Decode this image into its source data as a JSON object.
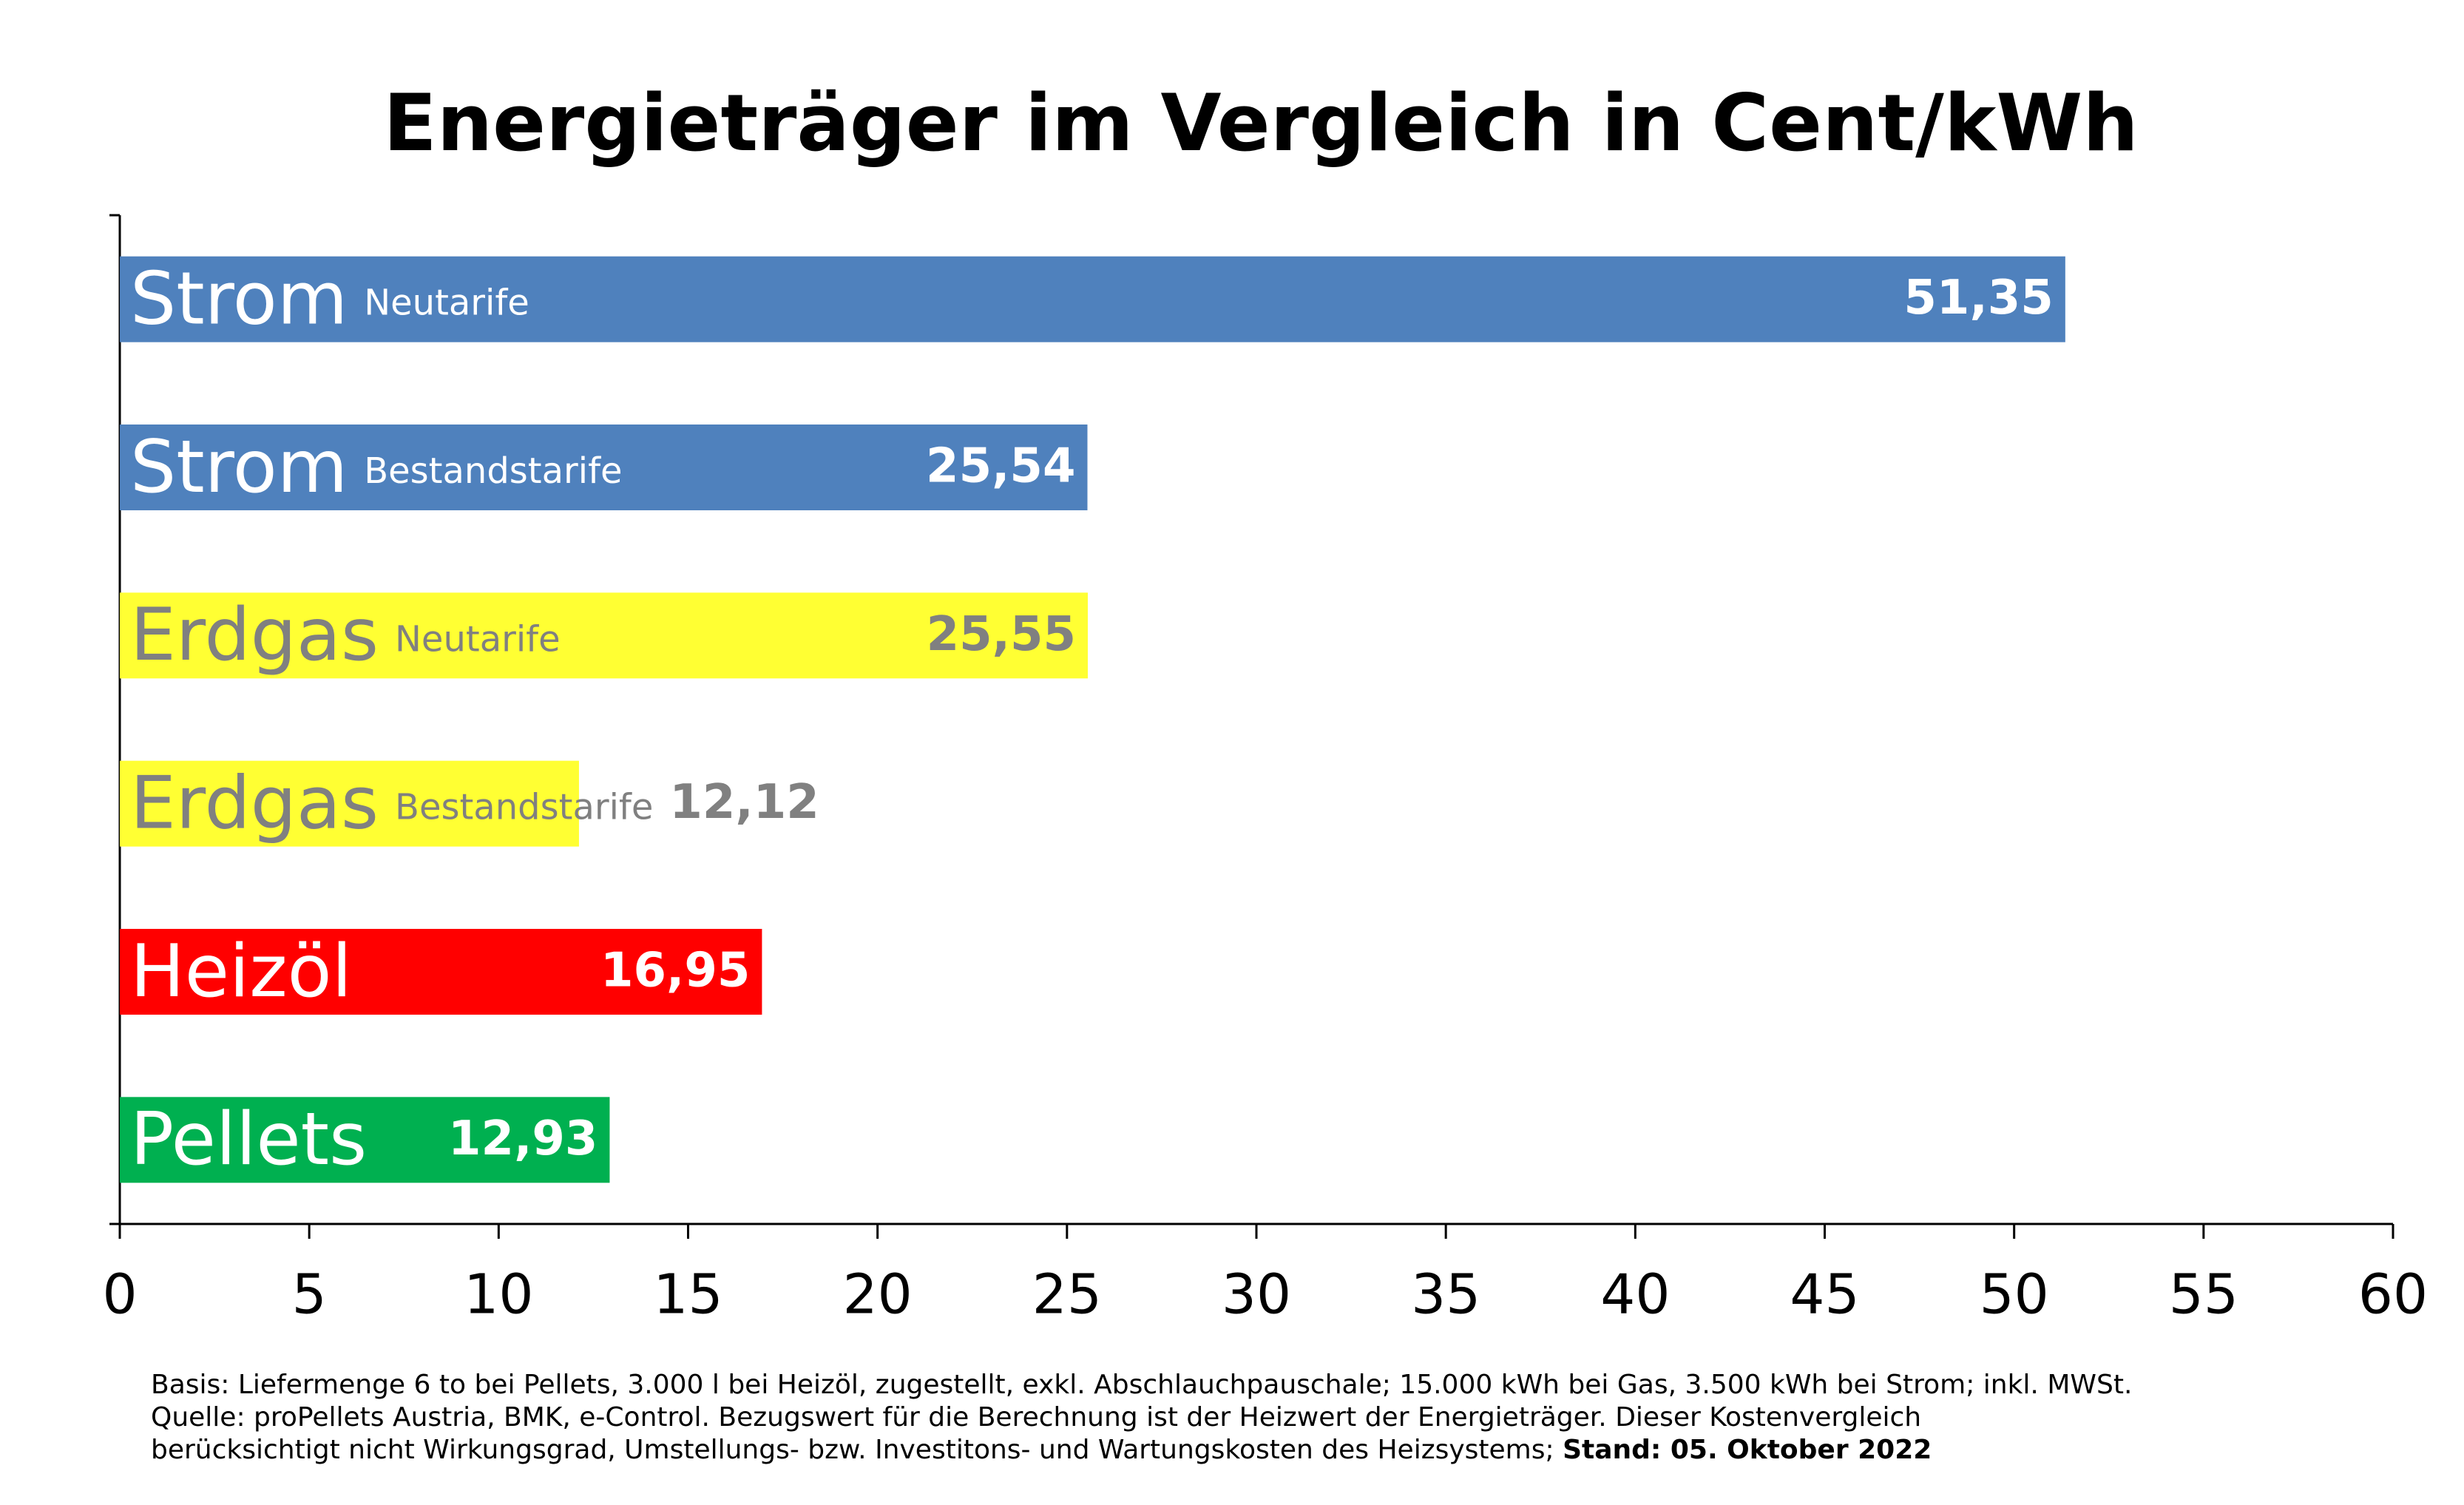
{
  "chart_data": {
    "type": "hbar",
    "title": "Energieträger im Vergleich in Cent/kWh",
    "categories": [
      "Strom",
      "Strom",
      "Erdgas",
      "Erdgas",
      "Heizöl",
      "Pellets"
    ],
    "sublabels": [
      "Neutarife",
      "Bestandstarife",
      "Neutarife",
      "Bestandstarife",
      null,
      null
    ],
    "values": [
      51.35,
      25.54,
      25.55,
      12.12,
      16.95,
      12.93
    ],
    "value_labels": [
      "51,35",
      "25,54",
      "25,55",
      "12,12",
      "16,95",
      "12,93"
    ],
    "colors": [
      "#4f81bd",
      "#4f81bd",
      "#ffff33",
      "#ffff33",
      "#ff0000",
      "#00b050"
    ],
    "label_colors": [
      "#ffffff",
      "#ffffff",
      "#808080",
      "#808080",
      "#ffffff",
      "#ffffff"
    ],
    "xlim": [
      0,
      60
    ],
    "xticks": [
      0,
      5,
      10,
      15,
      20,
      25,
      30,
      35,
      40,
      45,
      50,
      55,
      60
    ],
    "notes": [
      "Basis: Liefermenge 6 to bei Pellets, 3.000 l bei Heizöl, zugestellt, exkl. Abschlauchpauschale; 15.000 kWh bei Gas, 3.500 kWh bei Strom; inkl. MWSt.",
      "Quelle: proPellets Austria, BMK, e-Control. Bezugswert für die Berechnung ist der Heizwert der Energieträger. Dieser Kostenvergleich",
      "berücksichtigt nicht Wirkungsgrad, Umstellungs- bzw. Investitons- und Wartungskosten des Heizsystems;"
    ],
    "date_note": "Stand: 05. Oktober 2022"
  }
}
